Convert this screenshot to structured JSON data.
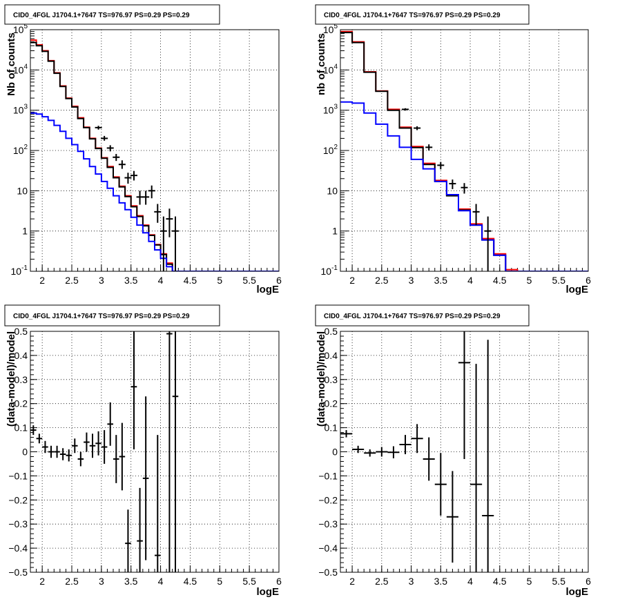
{
  "chart_data": [
    {
      "panel": "top-left",
      "type": "line",
      "title": "CID0_4FGL J1704.1+7647 TS=976.97 PS=0.29 PS=0.29",
      "xlabel": "logE",
      "ylabel": "Nb of counts",
      "y_scale": "log",
      "xlim": [
        1.8,
        6.0
      ],
      "ylim": [
        0.1,
        100000
      ],
      "grid": true,
      "x_ticks": [
        "2",
        "2.5",
        "3",
        "3.5",
        "4",
        "4.5",
        "5",
        "5.5",
        "6"
      ],
      "y_ticks": [
        "10^-1",
        "1",
        "10",
        "10^2",
        "10^3",
        "10^4",
        "10^5"
      ],
      "x_edges": [
        1.8,
        1.9,
        2.0,
        2.1,
        2.2,
        2.3,
        2.4,
        2.5,
        2.6,
        2.7,
        2.8,
        2.9,
        3.0,
        3.1,
        3.2,
        3.3,
        3.4,
        3.5,
        3.6,
        3.7,
        3.8,
        3.9,
        4.0,
        4.1,
        4.2,
        4.3,
        4.4,
        4.5,
        4.6,
        4.7,
        4.8,
        4.9,
        5.0,
        5.1,
        5.2,
        5.3,
        5.4,
        5.5,
        5.6,
        5.7,
        5.8,
        5.9,
        6.0
      ],
      "series": [
        {
          "color": "#ff0000",
          "values": [
            55000,
            42000,
            30000,
            17000,
            8500,
            4000,
            2000,
            1250,
            650,
            380,
            200,
            115,
            66,
            40,
            22,
            13,
            7.5,
            4.2,
            2.4,
            1.4,
            0.8,
            0.46,
            0.27,
            0.16,
            0.1,
            0.1,
            0.1,
            0.1,
            0.1,
            0.1,
            0.1,
            0.1,
            0.1,
            0.1,
            0.1,
            0.1,
            0.1,
            0.1,
            0.1,
            0.1,
            0.1,
            0.1
          ]
        },
        {
          "color": "#000000",
          "values": [
            48000,
            40000,
            29000,
            16500,
            8300,
            3900,
            1950,
            1200,
            620,
            370,
            195,
            112,
            64,
            38,
            21,
            12.5,
            7.2,
            4.0,
            2.3,
            1.35,
            0.78,
            0.45,
            0.26,
            0.15,
            0.1,
            0.1,
            0.1,
            0.1,
            0.1,
            0.1,
            0.1,
            0.1,
            0.1,
            0.1,
            0.1,
            0.1,
            0.1,
            0.1,
            0.1,
            0.1,
            0.1,
            0.1
          ]
        },
        {
          "color": "#0000ff",
          "values": [
            850,
            800,
            690,
            560,
            420,
            300,
            200,
            140,
            95,
            62,
            40,
            26,
            17,
            11.5,
            7.5,
            5.0,
            3.4,
            2.2,
            1.4,
            0.9,
            0.55,
            0.34,
            0.21,
            0.13,
            0.1,
            0.1,
            0.1,
            0.1,
            0.1,
            0.1,
            0.1,
            0.1,
            0.1,
            0.1,
            0.1,
            0.1,
            0.1,
            0.1,
            0.1,
            0.1,
            0.1,
            0.1
          ]
        }
      ],
      "data_points": [
        {
          "x": 2.95,
          "y": 370,
          "ylo": 330,
          "yhi": 410
        },
        {
          "x": 3.05,
          "y": 200,
          "ylo": 175,
          "yhi": 230
        },
        {
          "x": 3.15,
          "y": 115,
          "ylo": 95,
          "yhi": 135
        },
        {
          "x": 3.25,
          "y": 68,
          "ylo": 55,
          "yhi": 82
        },
        {
          "x": 3.35,
          "y": 45,
          "ylo": 35,
          "yhi": 57
        },
        {
          "x": 3.45,
          "y": 21,
          "ylo": 15,
          "yhi": 28
        },
        {
          "x": 3.55,
          "y": 24,
          "ylo": 18,
          "yhi": 31
        },
        {
          "x": 3.65,
          "y": 7,
          "ylo": 4.5,
          "yhi": 10
        },
        {
          "x": 3.75,
          "y": 7,
          "ylo": 4.5,
          "yhi": 10
        },
        {
          "x": 3.85,
          "y": 10,
          "ylo": 6.5,
          "yhi": 13.5
        },
        {
          "x": 3.95,
          "y": 3,
          "ylo": 1.6,
          "yhi": 4.7
        },
        {
          "x": 4.05,
          "y": 1,
          "ylo": 0.1,
          "yhi": 2.3
        },
        {
          "x": 4.15,
          "y": 2,
          "ylo": 0.7,
          "yhi": 3.6
        },
        {
          "x": 4.25,
          "y": 1,
          "ylo": 0.1,
          "yhi": 2.3
        }
      ]
    },
    {
      "panel": "top-right",
      "type": "line",
      "title": "CID0_4FGL J1704.1+7647 TS=976.97 PS=0.29 PS=0.29",
      "xlabel": "logE",
      "ylabel": "nb of counts",
      "y_scale": "log",
      "xlim": [
        1.8,
        6.0
      ],
      "ylim": [
        0.1,
        100000
      ],
      "grid": true,
      "x_ticks": [
        "2",
        "2.5",
        "3",
        "3.5",
        "4",
        "4.5",
        "5",
        "5.5",
        "6"
      ],
      "y_ticks": [
        "10^-1",
        "1",
        "10",
        "10^2",
        "10^3",
        "10^4",
        "10^5"
      ],
      "x_edges": [
        1.8,
        2.0,
        2.2,
        2.4,
        2.6,
        2.8,
        3.0,
        3.2,
        3.4,
        3.6,
        3.8,
        4.0,
        4.2,
        4.4,
        4.6,
        4.8,
        5.0,
        5.2,
        5.4,
        5.6,
        5.8,
        6.0
      ],
      "series": [
        {
          "color": "#ff0000",
          "values": [
            90000,
            50000,
            9000,
            3000,
            1050,
            380,
            125,
            48,
            18,
            8,
            3.5,
            1.5,
            0.65,
            0.27,
            0.11,
            0.1,
            0.1,
            0.1,
            0.1,
            0.1,
            0.1
          ]
        },
        {
          "color": "#000000",
          "values": [
            85000,
            48000,
            8800,
            2950,
            1000,
            360,
            118,
            45,
            17,
            7.5,
            3.3,
            1.4,
            0.6,
            0.25,
            0.1,
            0.1,
            0.1,
            0.1,
            0.1,
            0.1,
            0.1
          ]
        },
        {
          "color": "#0000ff",
          "values": [
            1600,
            1500,
            850,
            450,
            230,
            120,
            60,
            35,
            17,
            8,
            3.2,
            1.4,
            0.6,
            0.25,
            0.1,
            0.1,
            0.1,
            0.1,
            0.1,
            0.1,
            0.1
          ]
        }
      ],
      "data_points": [
        {
          "x": 2.9,
          "y": 1050,
          "ylo": 980,
          "yhi": 1120
        },
        {
          "x": 3.1,
          "y": 360,
          "ylo": 320,
          "yhi": 400
        },
        {
          "x": 3.3,
          "y": 120,
          "ylo": 100,
          "yhi": 142
        },
        {
          "x": 3.5,
          "y": 43,
          "ylo": 34,
          "yhi": 52
        },
        {
          "x": 3.7,
          "y": 15,
          "ylo": 11,
          "yhi": 19
        },
        {
          "x": 3.9,
          "y": 12,
          "ylo": 8.5,
          "yhi": 15.5
        },
        {
          "x": 4.1,
          "y": 3,
          "ylo": 1.4,
          "yhi": 4.7
        },
        {
          "x": 4.3,
          "y": 1,
          "ylo": 0.1,
          "yhi": 2.3
        }
      ]
    },
    {
      "panel": "bottom-left",
      "type": "scatter",
      "title": "CID0_4FGL J1704.1+7647 TS=976.97 PS=0.29 PS=0.29",
      "xlabel": "logE",
      "ylabel": "(data-model)/model",
      "y_scale": "linear",
      "xlim": [
        1.8,
        6.0
      ],
      "ylim": [
        -0.5,
        0.5
      ],
      "grid": true,
      "x_ticks": [
        "2",
        "2.5",
        "3",
        "3.5",
        "4",
        "4.5",
        "5",
        "5.5",
        "6"
      ],
      "y_ticks": [
        "−0.5",
        "−0.4",
        "−0.3",
        "−0.2",
        "−0.1",
        "0",
        "0.1",
        "0.2",
        "0.3",
        "0.4",
        "0.5"
      ],
      "data_points": [
        {
          "x": 1.85,
          "xerr": 0.05,
          "y": 0.09,
          "yerr": 0.02
        },
        {
          "x": 1.95,
          "xerr": 0.05,
          "y": 0.055,
          "yerr": 0.02
        },
        {
          "x": 2.05,
          "xerr": 0.05,
          "y": 0.02,
          "yerr": 0.025
        },
        {
          "x": 2.15,
          "xerr": 0.05,
          "y": 0.0,
          "yerr": 0.025
        },
        {
          "x": 2.25,
          "xerr": 0.05,
          "y": 0.0,
          "yerr": 0.025
        },
        {
          "x": 2.35,
          "xerr": 0.05,
          "y": -0.01,
          "yerr": 0.025
        },
        {
          "x": 2.45,
          "xerr": 0.05,
          "y": -0.015,
          "yerr": 0.025
        },
        {
          "x": 2.55,
          "xerr": 0.05,
          "y": 0.025,
          "yerr": 0.03
        },
        {
          "x": 2.65,
          "xerr": 0.05,
          "y": -0.03,
          "yerr": 0.03
        },
        {
          "x": 2.75,
          "xerr": 0.05,
          "y": 0.04,
          "yerr": 0.04
        },
        {
          "x": 2.85,
          "xerr": 0.05,
          "y": 0.025,
          "yerr": 0.05
        },
        {
          "x": 2.95,
          "xerr": 0.05,
          "y": 0.035,
          "yerr": 0.05
        },
        {
          "x": 3.05,
          "xerr": 0.05,
          "y": 0.02,
          "yerr": 0.07
        },
        {
          "x": 3.15,
          "xerr": 0.05,
          "y": 0.115,
          "yerr": 0.09
        },
        {
          "x": 3.25,
          "xerr": 0.05,
          "y": -0.03,
          "yerr": 0.1
        },
        {
          "x": 3.35,
          "xerr": 0.05,
          "y": -0.02,
          "yerr": 0.14
        },
        {
          "x": 3.45,
          "xerr": 0.05,
          "y": -0.38,
          "yerr": 0.14
        },
        {
          "x": 3.55,
          "xerr": 0.05,
          "y": 0.27,
          "yerr": 0.26
        },
        {
          "x": 3.65,
          "xerr": 0.05,
          "y": -0.37,
          "yerr": 0.22
        },
        {
          "x": 3.75,
          "xerr": 0.05,
          "y": -0.11,
          "yerr": 0.34
        },
        {
          "x": 3.95,
          "xerr": 0.05,
          "y": -0.43,
          "yerr": 0.5
        },
        {
          "x": 4.15,
          "xerr": 0.05,
          "y": 0.49,
          "yerr": 1.0
        },
        {
          "x": 4.25,
          "xerr": 0.05,
          "y": 0.23,
          "yerr": 1.0
        }
      ]
    },
    {
      "panel": "bottom-right",
      "type": "scatter",
      "title": "CID0_4FGL J1704.1+7647 TS=976.97 PS=0.29 PS=0.29",
      "xlabel": "logE",
      "ylabel": "(data-model)/model",
      "y_scale": "linear",
      "xlim": [
        1.8,
        6.0
      ],
      "ylim": [
        -0.5,
        0.5
      ],
      "grid": true,
      "x_ticks": [
        "2",
        "2.5",
        "3",
        "3.5",
        "4",
        "4.5",
        "5",
        "5.5",
        "6"
      ],
      "y_ticks": [
        "−0.5",
        "−0.4",
        "−0.3",
        "−0.2",
        "−0.1",
        "0",
        "0.1",
        "0.2",
        "0.3",
        "0.4",
        "0.5"
      ],
      "data_points": [
        {
          "x": 1.9,
          "xerr": 0.1,
          "y": 0.075,
          "yerr": 0.015
        },
        {
          "x": 2.1,
          "xerr": 0.1,
          "y": 0.01,
          "yerr": 0.015
        },
        {
          "x": 2.3,
          "xerr": 0.1,
          "y": -0.005,
          "yerr": 0.015
        },
        {
          "x": 2.5,
          "xerr": 0.1,
          "y": 0.0,
          "yerr": 0.02
        },
        {
          "x": 2.7,
          "xerr": 0.1,
          "y": -0.002,
          "yerr": 0.025
        },
        {
          "x": 2.9,
          "xerr": 0.1,
          "y": 0.03,
          "yerr": 0.04
        },
        {
          "x": 3.1,
          "xerr": 0.1,
          "y": 0.055,
          "yerr": 0.06
        },
        {
          "x": 3.3,
          "xerr": 0.1,
          "y": -0.03,
          "yerr": 0.09
        },
        {
          "x": 3.5,
          "xerr": 0.1,
          "y": -0.135,
          "yerr": 0.13
        },
        {
          "x": 3.7,
          "xerr": 0.1,
          "y": -0.27,
          "yerr": 0.19
        },
        {
          "x": 3.9,
          "xerr": 0.1,
          "y": 0.37,
          "yerr": 0.4
        },
        {
          "x": 4.1,
          "xerr": 0.1,
          "y": -0.135,
          "yerr": 0.5
        },
        {
          "x": 4.3,
          "xerr": 0.1,
          "y": -0.265,
          "yerr": 0.73
        }
      ]
    }
  ]
}
